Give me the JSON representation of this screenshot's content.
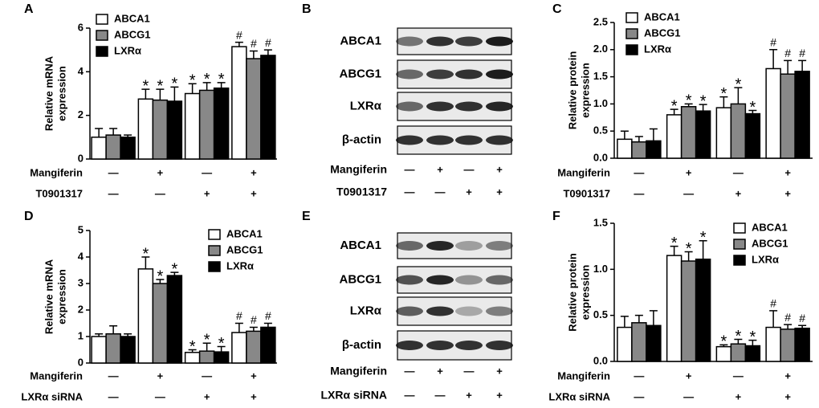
{
  "chart_data": [
    {
      "type": "bar",
      "panel_label": "A",
      "ylabel": [
        "Relative mRNA",
        "expression"
      ],
      "ylim": [
        0,
        6
      ],
      "yticks": [
        0,
        2,
        4,
        6
      ],
      "series": [
        {
          "name": "ABCA1",
          "color": "#ffffff",
          "values": [
            1.0,
            2.75,
            3.0,
            5.15
          ],
          "errors": [
            0.4,
            0.45,
            0.45,
            0.2
          ],
          "annotations": [
            null,
            "*",
            "*",
            "#"
          ]
        },
        {
          "name": "ABCG1",
          "color": "#888888",
          "values": [
            1.1,
            2.7,
            3.15,
            4.6
          ],
          "errors": [
            0.3,
            0.5,
            0.35,
            0.35
          ],
          "annotations": [
            null,
            "*",
            "*",
            "#"
          ]
        },
        {
          "name": "LXRα",
          "color": "#000000",
          "values": [
            1.0,
            2.65,
            3.25,
            4.75
          ],
          "errors": [
            0.1,
            0.65,
            0.25,
            0.25
          ],
          "annotations": [
            null,
            "*",
            "*",
            "#"
          ]
        }
      ],
      "treatments": [
        {
          "name": "Mangiferin",
          "signs": [
            "—",
            "+",
            "—",
            "+"
          ]
        },
        {
          "name": "T0901317",
          "signs": [
            "—",
            "—",
            "+",
            "+"
          ]
        }
      ]
    },
    {
      "type": "bar",
      "panel_label": "C",
      "ylabel": [
        "Relative protein",
        "expression"
      ],
      "ylim": [
        0,
        2.5
      ],
      "yticks": [
        {
          "value": 0,
          "label": "0.0"
        },
        0.5,
        {
          "value": 1,
          "label": "1.0"
        },
        1.5,
        {
          "value": 2,
          "label": "2.0"
        },
        2.5
      ],
      "series": [
        {
          "name": "ABCA1",
          "color": "#ffffff",
          "values": [
            0.35,
            0.8,
            0.93,
            1.65
          ],
          "errors": [
            0.15,
            0.1,
            0.2,
            0.35
          ],
          "annotations": [
            null,
            "*",
            "*",
            "#"
          ]
        },
        {
          "name": "ABCG1",
          "color": "#888888",
          "values": [
            0.3,
            0.95,
            1.0,
            1.55
          ],
          "errors": [
            0.1,
            0.05,
            0.3,
            0.25
          ],
          "annotations": [
            null,
            "*",
            "*",
            "#"
          ]
        },
        {
          "name": "LXRα",
          "color": "#000000",
          "values": [
            0.32,
            0.87,
            0.82,
            1.6
          ],
          "errors": [
            0.22,
            0.12,
            0.06,
            0.2
          ],
          "annotations": [
            null,
            "*",
            "*",
            "#"
          ]
        }
      ],
      "treatments": [
        {
          "name": "Mangiferin",
          "signs": [
            "—",
            "+",
            "—",
            "+"
          ]
        },
        {
          "name": "T0901317",
          "signs": [
            "—",
            "—",
            "+",
            "+"
          ]
        }
      ]
    },
    {
      "type": "bar",
      "panel_label": "D",
      "ylabel": [
        "Relative mRNA",
        "expression"
      ],
      "ylim": [
        0,
        5
      ],
      "yticks": [
        0,
        1,
        2,
        3,
        4,
        5
      ],
      "series": [
        {
          "name": "ABCA1",
          "color": "#ffffff",
          "values": [
            1.0,
            3.55,
            0.4,
            1.15
          ],
          "errors": [
            0.1,
            0.45,
            0.1,
            0.35
          ],
          "annotations": [
            null,
            "*",
            "*",
            "#"
          ]
        },
        {
          "name": "ABCG1",
          "color": "#888888",
          "values": [
            1.1,
            3.0,
            0.45,
            1.2
          ],
          "errors": [
            0.3,
            0.15,
            0.3,
            0.15
          ],
          "annotations": [
            null,
            "*",
            "*",
            "#"
          ]
        },
        {
          "name": "LXRα",
          "color": "#000000",
          "values": [
            1.0,
            3.3,
            0.42,
            1.35
          ],
          "errors": [
            0.1,
            0.12,
            0.2,
            0.15
          ],
          "annotations": [
            null,
            "*",
            "*",
            "#"
          ]
        }
      ],
      "treatments": [
        {
          "name": "Mangiferin",
          "signs": [
            "—",
            "+",
            "—",
            "+"
          ]
        },
        {
          "name": "LXRα siRNA",
          "signs": [
            "—",
            "—",
            "+",
            "+"
          ]
        }
      ]
    },
    {
      "type": "bar",
      "panel_label": "F",
      "ylabel": [
        "Relative protein",
        "expression"
      ],
      "ylim": [
        0,
        1.5
      ],
      "yticks": [
        {
          "value": 0,
          "label": "0.0"
        },
        0.5,
        {
          "value": 1,
          "label": "1.0"
        },
        1.5
      ],
      "series": [
        {
          "name": "ABCA1",
          "color": "#ffffff",
          "values": [
            0.37,
            1.15,
            0.16,
            0.37
          ],
          "errors": [
            0.12,
            0.1,
            0.02,
            0.18
          ],
          "annotations": [
            null,
            "*",
            "*",
            "#"
          ]
        },
        {
          "name": "ABCG1",
          "color": "#888888",
          "values": [
            0.42,
            1.09,
            0.19,
            0.35
          ],
          "errors": [
            0.08,
            0.1,
            0.05,
            0.05
          ],
          "annotations": [
            null,
            "*",
            "*",
            "#"
          ]
        },
        {
          "name": "LXRα",
          "color": "#000000",
          "values": [
            0.39,
            1.11,
            0.17,
            0.36
          ],
          "errors": [
            0.16,
            0.2,
            0.06,
            0.03
          ],
          "annotations": [
            null,
            "*",
            "*",
            "#"
          ]
        }
      ],
      "treatments": [
        {
          "name": "Mangiferin",
          "signs": [
            "—",
            "+",
            "—",
            "+"
          ]
        },
        {
          "name": "LXRα siRNA",
          "signs": [
            "—",
            "—",
            "+",
            "+"
          ]
        }
      ]
    }
  ],
  "blots": [
    {
      "panel_label": "B",
      "proteins": [
        "ABCA1",
        "ABCG1",
        "LXRα",
        "β-actin"
      ],
      "treatments": [
        {
          "name": "Mangiferin",
          "signs": [
            "—",
            "+",
            "—",
            "+"
          ]
        },
        {
          "name": "T0901317",
          "signs": [
            "—",
            "—",
            "+",
            "+"
          ]
        }
      ]
    },
    {
      "panel_label": "E",
      "proteins": [
        "ABCA1",
        "ABCG1",
        "LXRα",
        "β-actin"
      ],
      "treatments": [
        {
          "name": "Mangiferin",
          "signs": [
            "—",
            "+",
            "—",
            "+"
          ]
        },
        {
          "name": "LXRα siRNA",
          "signs": [
            "—",
            "—",
            "+",
            "+"
          ]
        }
      ]
    }
  ]
}
